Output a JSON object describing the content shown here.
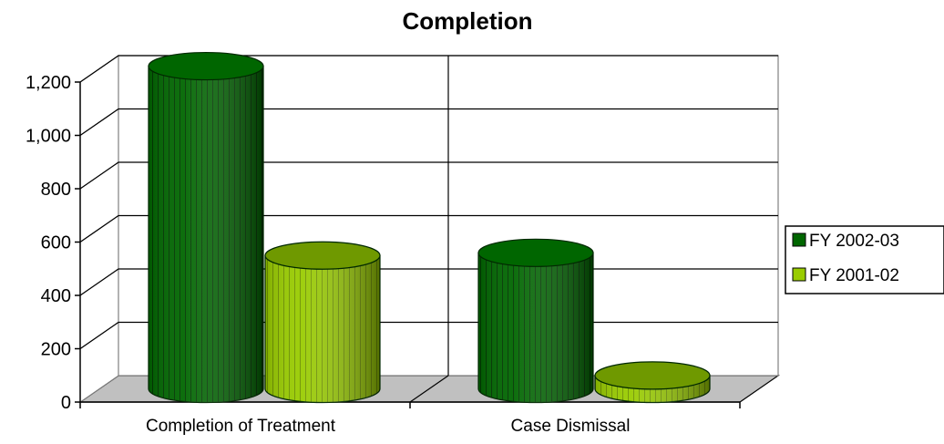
{
  "chart_data": {
    "type": "bar",
    "style": "3d-cylinder",
    "title": "Completion",
    "xlabel": "",
    "ylabel": "",
    "categories": [
      "Completion of Treatment",
      "Case Dismissal"
    ],
    "series": [
      {
        "name": "FY 2002-03",
        "values": [
          1210,
          510
        ],
        "color": "#006600"
      },
      {
        "name": "FY 2001-02",
        "values": [
          500,
          50
        ],
        "color": "#99CC00"
      }
    ],
    "ylim": [
      0,
      1200
    ],
    "yticks": [
      0,
      200,
      400,
      600,
      800,
      1000,
      1200
    ],
    "ytick_labels": [
      "0",
      "200",
      "400",
      "600",
      "800",
      "1,000",
      "1,200"
    ],
    "grid": true,
    "legend_position": "right"
  }
}
